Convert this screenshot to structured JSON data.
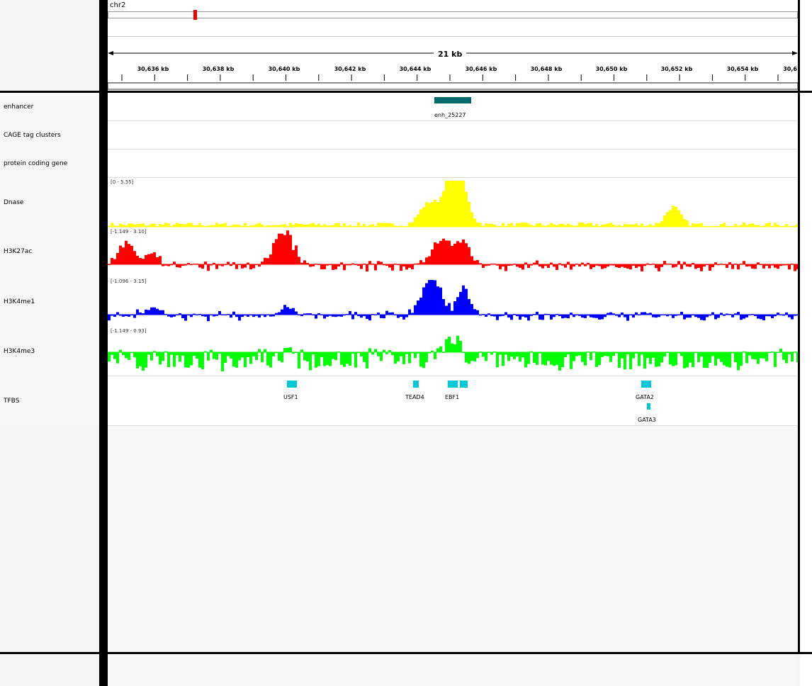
{
  "locus": {
    "chromosome": "chr2",
    "span_label": "21 kb"
  },
  "ruler": {
    "ticks": [
      {
        "label": "30,636 kb",
        "pos": 217
      },
      {
        "label": "30,638 kb",
        "pos": 309
      },
      {
        "label": "30,640 kb",
        "pos": 402
      },
      {
        "label": "30,642 kb",
        "pos": 495
      },
      {
        "label": "30,644 kb",
        "pos": 587
      },
      {
        "label": "30,646 kb",
        "pos": 680
      },
      {
        "label": "30,648 kb",
        "pos": 772
      },
      {
        "label": "30,650 kb",
        "pos": 864
      },
      {
        "label": "30,652 kb",
        "pos": 956
      },
      {
        "label": "30,654 kb",
        "pos": 1049
      },
      {
        "label": "30,6",
        "pos": 1126
      }
    ]
  },
  "tracks": {
    "enhancer": {
      "label": "enhancer",
      "feature": "enh_25227"
    },
    "cage": {
      "label": "CAGE tag clusters"
    },
    "gene": {
      "label": "protein coding gene"
    },
    "dnase": {
      "label": "Dnase",
      "range": "[0 - 5.55]",
      "color": "#ffff00"
    },
    "h3k27ac": {
      "label": "H3K27ac",
      "range": "[-1.149 - 3.10]",
      "color": "#ff0000"
    },
    "h3k4me1": {
      "label": "H3K4me1",
      "range": "[-1.096 - 3.15]",
      "color": "#0000ff"
    },
    "h3k4me3": {
      "label": "H3K4me3",
      "range": "[-1.149 - 0.93]",
      "color": "#00ff00"
    },
    "tfbs": {
      "label": "TFBS",
      "color": "#00c8d7",
      "features": [
        {
          "name": "USF1"
        },
        {
          "name": "TEAD4"
        },
        {
          "name": "EBF1"
        },
        {
          "name": "GATA2"
        },
        {
          "name": "GATA3"
        }
      ]
    }
  }
}
